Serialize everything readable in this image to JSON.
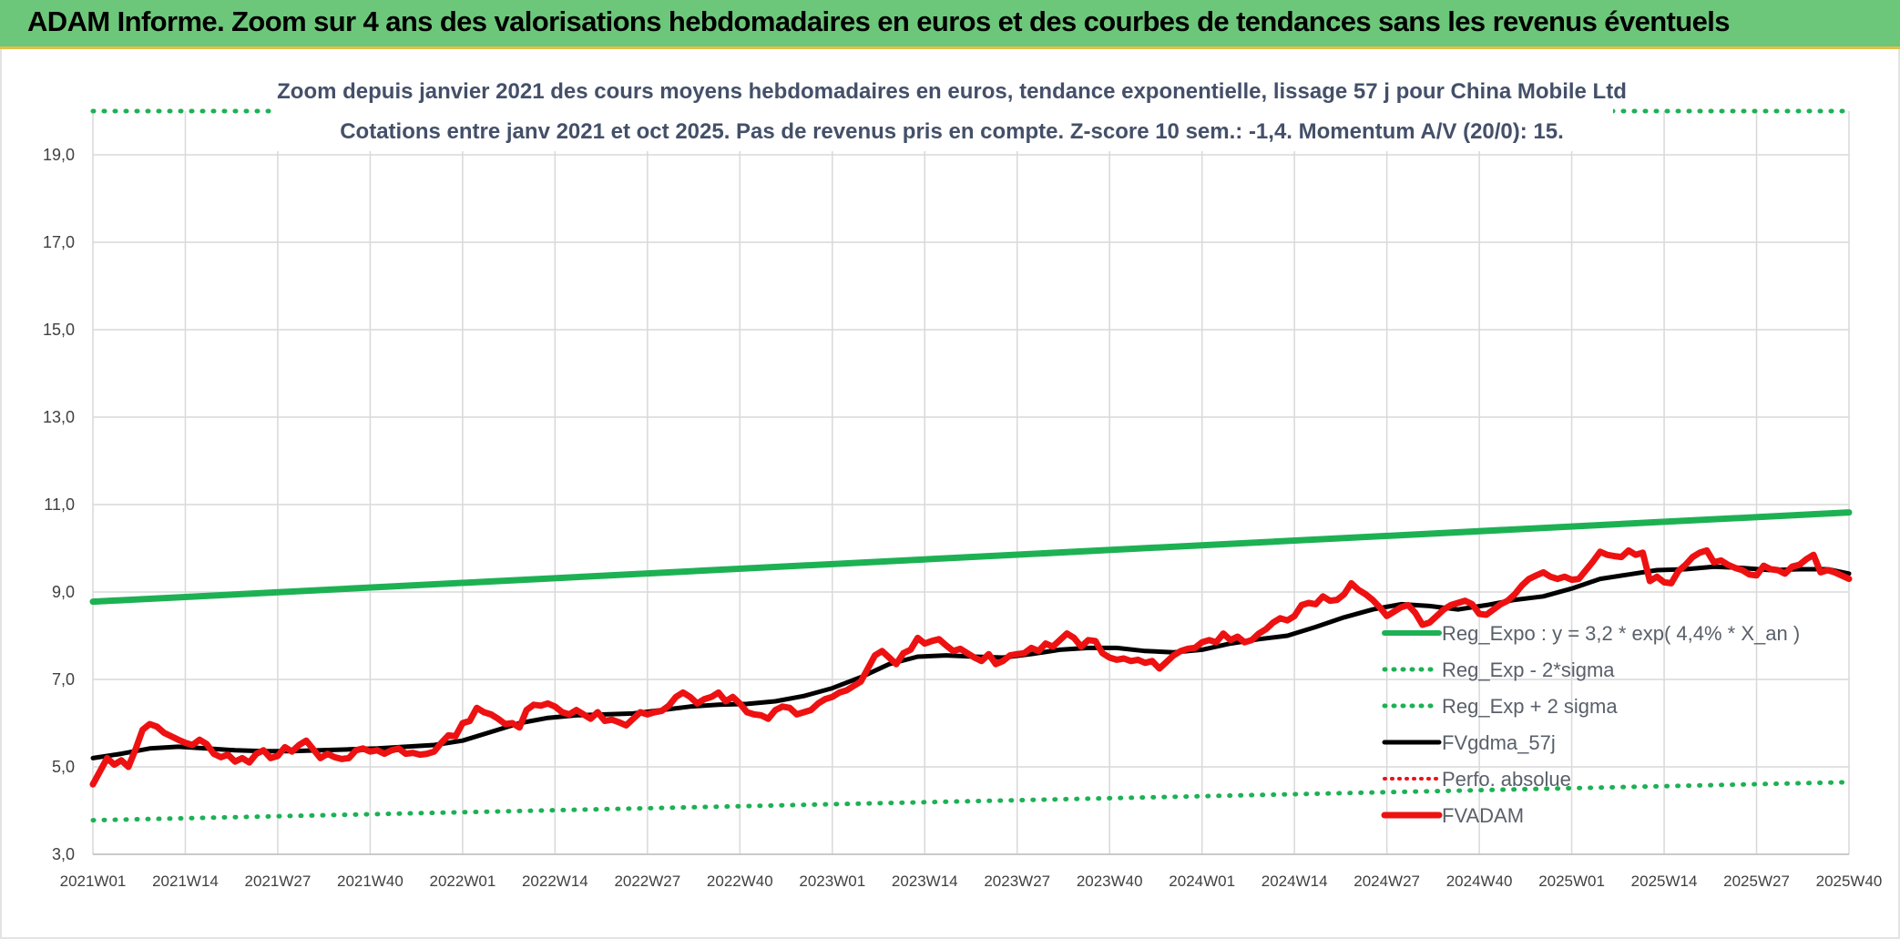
{
  "banner": {
    "title": "ADAM Informe. Zoom sur 4 ans des valorisations hebdomadaires en euros et des courbes de tendances sans les revenus éventuels"
  },
  "colors": {
    "banner": "#6cc77a",
    "trend": "#1db154",
    "band": "#1db154",
    "smooth": "#000000",
    "price": "#ee1111",
    "perfo": "#e8141a",
    "grid": "#d9d9d9"
  },
  "chart_data": {
    "type": "line",
    "title": "Zoom depuis janvier 2021 des cours moyens hebdomadaires en euros, tendance exponentielle, lissage 57 j pour China Mobile Ltd",
    "subtitle": "Cotations entre janv 2021 et oct 2025. Pas de revenus pris en compte. Z-score 10 sem.: -1,4. Momentum A/V (20/0): 15.",
    "xlabel": "",
    "ylabel": "",
    "ylim": [
      3.0,
      19.0
    ],
    "y_ticks": [
      "3,0",
      "5,0",
      "7,0",
      "9,0",
      "11,0",
      "13,0",
      "15,0",
      "17,0",
      "19,0"
    ],
    "x_ticks": [
      "2021W01",
      "2021W14",
      "2021W27",
      "2021W40",
      "2022W01",
      "2022W14",
      "2022W27",
      "2022W40",
      "2023W01",
      "2023W14",
      "2023W27",
      "2023W40",
      "2024W01",
      "2024W14",
      "2024W27",
      "2024W40",
      "2025W01",
      "2025W14",
      "2025W27",
      "2025W40"
    ],
    "grid": true,
    "legend_position": "right",
    "legend": [
      {
        "name": "Reg_Expo : y = 3,2 * exp( 4,4% *  X_an )",
        "style": "solid-green"
      },
      {
        "name": "Reg_Exp - 2*sigma",
        "style": "dotted-green"
      },
      {
        "name": "Reg_Exp + 2 sigma",
        "style": "dotted-green"
      },
      {
        "name": "FVgdma_57j",
        "style": "solid-black"
      },
      {
        "name": "Perfo. absolue",
        "style": "dotted-red"
      },
      {
        "name": "FVADAM",
        "style": "solid-red"
      }
    ],
    "series": [
      {
        "name": "Reg_Expo : y = 3,2 * exp( 4,4% *  X_an )",
        "x": [
          0,
          247
        ],
        "values": [
          8.78,
          10.82
        ]
      },
      {
        "name": "Reg_Exp - 2*sigma",
        "x": [
          0,
          247
        ],
        "values": [
          3.78,
          4.65
        ]
      },
      {
        "name": "Reg_Exp + 2 sigma",
        "x": [
          0,
          247
        ],
        "values": [
          20.0,
          20.0
        ]
      },
      {
        "name": "FVgdma_57j",
        "x": [
          0,
          4,
          8,
          12,
          16,
          20,
          24,
          28,
          32,
          36,
          40,
          44,
          48,
          52,
          56,
          60,
          64,
          68,
          72,
          76,
          80,
          84,
          88,
          92,
          96,
          100,
          104,
          108,
          112,
          116,
          120,
          124,
          128,
          132,
          136,
          140,
          144,
          148,
          152,
          156,
          160,
          164,
          168,
          172,
          176,
          180,
          184,
          188,
          192,
          196,
          200,
          204,
          208,
          212,
          216,
          220,
          224,
          228,
          232,
          236,
          240,
          244,
          247
        ],
        "values": [
          5.2,
          5.3,
          5.42,
          5.46,
          5.42,
          5.38,
          5.36,
          5.36,
          5.38,
          5.4,
          5.42,
          5.46,
          5.5,
          5.6,
          5.8,
          6.0,
          6.12,
          6.18,
          6.2,
          6.22,
          6.3,
          6.38,
          6.42,
          6.44,
          6.5,
          6.62,
          6.8,
          7.05,
          7.35,
          7.52,
          7.55,
          7.52,
          7.5,
          7.58,
          7.68,
          7.72,
          7.72,
          7.65,
          7.62,
          7.68,
          7.82,
          7.92,
          8.0,
          8.2,
          8.42,
          8.6,
          8.72,
          8.68,
          8.6,
          8.7,
          8.82,
          8.9,
          9.08,
          9.3,
          9.4,
          9.5,
          9.52,
          9.58,
          9.55,
          9.5,
          9.52,
          9.52,
          9.42
        ]
      },
      {
        "name": "FVADAM",
        "x": [
          0,
          2,
          3,
          4,
          5,
          6,
          7,
          8,
          9,
          10,
          11,
          12,
          13,
          14,
          15,
          16,
          17,
          18,
          19,
          20,
          21,
          22,
          23,
          24,
          25,
          26,
          27,
          28,
          29,
          30,
          31,
          32,
          33,
          34,
          35,
          36,
          37,
          38,
          39,
          40,
          41,
          42,
          43,
          44,
          45,
          46,
          47,
          48,
          49,
          50,
          51,
          52,
          53,
          54,
          55,
          56,
          57,
          58,
          59,
          60,
          61,
          62,
          63,
          64,
          65,
          66,
          67,
          68,
          69,
          70,
          71,
          72,
          73,
          74,
          75,
          76,
          77,
          78,
          79,
          80,
          81,
          82,
          83,
          84,
          85,
          86,
          87,
          88,
          89,
          90,
          91,
          92,
          93,
          94,
          95,
          96,
          97,
          98,
          99,
          100,
          101,
          102,
          103,
          104,
          105,
          106,
          107,
          108,
          109,
          110,
          111,
          112,
          113,
          114,
          115,
          116,
          117,
          118,
          119,
          120,
          121,
          122,
          123,
          124,
          125,
          126,
          127,
          128,
          129,
          130,
          131,
          132,
          133,
          134,
          135,
          136,
          137,
          138,
          139,
          140,
          141,
          142,
          143,
          144,
          145,
          146,
          147,
          148,
          149,
          150,
          151,
          152,
          153,
          154,
          155,
          156,
          157,
          158,
          159,
          160,
          161,
          162,
          163,
          164,
          165,
          166,
          167,
          168,
          169,
          170,
          171,
          172,
          173,
          174,
          175,
          176,
          177,
          178,
          179,
          180,
          181,
          182,
          183,
          184,
          185,
          186,
          187,
          188,
          189,
          190,
          191,
          192,
          193,
          194,
          195,
          196,
          197,
          198,
          199,
          200,
          201,
          202,
          203,
          204,
          205,
          206,
          207,
          208,
          209,
          210,
          211,
          212,
          213,
          214,
          215,
          216,
          217,
          218,
          219,
          220,
          221,
          222,
          223,
          224,
          225,
          226,
          227,
          228,
          229,
          230,
          231,
          232,
          233,
          234,
          235,
          236,
          237,
          238,
          239,
          240,
          241,
          242,
          243,
          244,
          245,
          247
        ],
        "values": [
          4.6,
          5.2,
          5.05,
          5.15,
          5.0,
          5.4,
          5.85,
          5.98,
          5.92,
          5.78,
          5.7,
          5.62,
          5.55,
          5.5,
          5.62,
          5.52,
          5.3,
          5.22,
          5.28,
          5.12,
          5.2,
          5.1,
          5.3,
          5.38,
          5.2,
          5.25,
          5.45,
          5.35,
          5.5,
          5.6,
          5.4,
          5.2,
          5.3,
          5.22,
          5.18,
          5.2,
          5.38,
          5.42,
          5.35,
          5.38,
          5.3,
          5.38,
          5.42,
          5.3,
          5.32,
          5.28,
          5.3,
          5.35,
          5.55,
          5.72,
          5.7,
          6.0,
          6.05,
          6.35,
          6.25,
          6.2,
          6.1,
          5.98,
          6.0,
          5.9,
          6.3,
          6.42,
          6.4,
          6.45,
          6.38,
          6.25,
          6.2,
          6.3,
          6.2,
          6.1,
          6.25,
          6.05,
          6.08,
          6.02,
          5.95,
          6.1,
          6.25,
          6.2,
          6.25,
          6.28,
          6.4,
          6.6,
          6.7,
          6.6,
          6.45,
          6.55,
          6.6,
          6.7,
          6.5,
          6.6,
          6.45,
          6.25,
          6.2,
          6.18,
          6.1,
          6.3,
          6.38,
          6.35,
          6.2,
          6.25,
          6.3,
          6.45,
          6.55,
          6.6,
          6.7,
          6.75,
          6.85,
          6.95,
          7.25,
          7.55,
          7.65,
          7.5,
          7.35,
          7.6,
          7.68,
          7.95,
          7.82,
          7.88,
          7.92,
          7.78,
          7.65,
          7.7,
          7.6,
          7.5,
          7.42,
          7.58,
          7.35,
          7.42,
          7.55,
          7.58,
          7.6,
          7.72,
          7.65,
          7.82,
          7.75,
          7.9,
          8.05,
          7.95,
          7.75,
          7.9,
          7.88,
          7.6,
          7.5,
          7.45,
          7.48,
          7.42,
          7.45,
          7.38,
          7.42,
          7.25,
          7.4,
          7.55,
          7.65,
          7.7,
          7.72,
          7.85,
          7.9,
          7.85,
          8.05,
          7.9,
          7.98,
          7.85,
          7.9,
          8.05,
          8.15,
          8.3,
          8.4,
          8.35,
          8.45,
          8.7,
          8.75,
          8.72,
          8.9,
          8.8,
          8.82,
          8.95,
          9.2,
          9.05,
          8.95,
          8.82,
          8.65,
          8.45,
          8.55,
          8.65,
          8.7,
          8.52,
          8.25,
          8.3,
          8.45,
          8.6,
          8.7,
          8.75,
          8.8,
          8.72,
          8.5,
          8.48,
          8.6,
          8.72,
          8.8,
          8.95,
          9.15,
          9.3,
          9.38,
          9.45,
          9.35,
          9.3,
          9.35,
          9.28,
          9.3,
          9.5,
          9.7,
          9.92,
          9.85,
          9.82,
          9.8,
          9.95,
          9.85,
          9.9,
          9.25,
          9.35,
          9.22,
          9.2,
          9.48,
          9.62,
          9.8,
          9.9,
          9.95,
          9.68,
          9.72,
          9.62,
          9.55,
          9.5,
          9.4,
          9.38,
          9.6,
          9.52,
          9.5,
          9.42,
          9.58,
          9.62,
          9.75,
          9.85,
          9.45,
          9.5,
          9.45,
          9.3
        ]
      }
    ]
  }
}
